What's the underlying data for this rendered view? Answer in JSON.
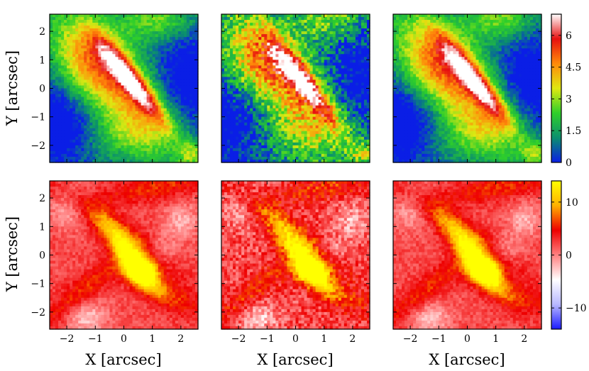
{
  "chart_data": {
    "type": "heatmap",
    "layout": "2x3 panel grid with shared colorbar per row",
    "xlabel": "X [arcsec]",
    "ylabel": "Y [arcsec]",
    "xlim": [
      -2.6,
      2.6
    ],
    "ylim": [
      -2.6,
      2.6
    ],
    "x_ticks": [
      -2,
      -1,
      0,
      1,
      2
    ],
    "y_ticks": [
      -2,
      -1,
      0,
      1,
      2
    ],
    "x_tick_labels": [
      "−2",
      "−1",
      "0",
      "1",
      "2"
    ],
    "y_tick_labels": [
      "−2",
      "−1",
      "0",
      "1",
      "2"
    ],
    "grid": false,
    "rows": [
      {
        "colormap": "blue-green-yellow-red-white",
        "colorbar": {
          "min": 0,
          "max": 7,
          "ticks": [
            0,
            1.5,
            3,
            4.5,
            6
          ],
          "tick_labels": [
            "0",
            "1.5",
            "3",
            "4.5",
            "6"
          ],
          "colors": [
            "#0a1ee6",
            "#0b8f6e",
            "#2fcf2a",
            "#dfe812",
            "#ff8a0a",
            "#e61010",
            "#ffffff"
          ]
        },
        "panels": 3
      },
      {
        "colormap": "blue-white-red-yellow",
        "colorbar": {
          "min": -14,
          "max": 14,
          "ticks": [
            -10,
            0,
            10
          ],
          "tick_labels": [
            "−10",
            "0",
            "10"
          ],
          "colors": [
            "#1a1aff",
            "#b8b8ff",
            "#ffffff",
            "#ff8080",
            "#ee0000",
            "#ffb000",
            "#ffff00"
          ]
        },
        "panels": 3
      }
    ]
  }
}
